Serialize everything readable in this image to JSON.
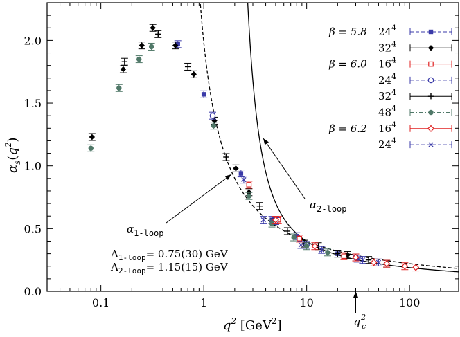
{
  "chart_data": {
    "type": "scatter",
    "title": "",
    "xlabel": "q^2 [GeV^2]",
    "ylabel": "α_s(q^2)",
    "x_scale": "log",
    "xlim": [
      0.03,
      300
    ],
    "ylim": [
      0.0,
      2.3
    ],
    "grid": false,
    "legend_position": "top-right",
    "x_ticks": [
      {
        "value": 0.1,
        "label": "0.1"
      },
      {
        "value": 1,
        "label": "1"
      },
      {
        "value": 10,
        "label": "10"
      },
      {
        "value": 100,
        "label": "100"
      }
    ],
    "y_ticks": [
      {
        "value": 0.0,
        "label": "0.0"
      },
      {
        "value": 0.5,
        "label": "0.5"
      },
      {
        "value": 1.0,
        "label": "1.0"
      },
      {
        "value": 1.5,
        "label": "1.5"
      },
      {
        "value": 2.0,
        "label": "2.0"
      }
    ],
    "series": [
      {
        "name": "24^4",
        "beta_label": "β = 5.8",
        "color": "#3a3aa8",
        "marker": "square-filled",
        "line": "dash",
        "points": [
          [
            0.56,
            1.97
          ],
          [
            1.0,
            1.57
          ],
          [
            2.3,
            0.94
          ],
          [
            4.6,
            0.57
          ],
          [
            8.0,
            0.44
          ],
          [
            20,
            0.3
          ],
          [
            31,
            0.26
          ]
        ]
      },
      {
        "name": "32^4",
        "beta_label": "",
        "color": "#000000",
        "marker": "diamond-filled",
        "line": "solid",
        "points": [
          [
            0.082,
            1.23
          ],
          [
            0.165,
            1.77
          ],
          [
            0.25,
            1.96
          ],
          [
            0.32,
            2.1
          ],
          [
            0.53,
            1.96
          ],
          [
            0.8,
            1.73
          ],
          [
            1.27,
            1.36
          ],
          [
            2.05,
            0.98
          ],
          [
            2.75,
            0.79
          ],
          [
            4.8,
            0.55
          ],
          [
            9.5,
            0.38
          ],
          [
            25,
            0.29
          ]
        ]
      },
      {
        "name": "16^4",
        "beta_label": "β = 6.0",
        "color": "#e02020",
        "marker": "square-open",
        "line": "solid",
        "points": [
          [
            2.75,
            0.85
          ],
          [
            5.3,
            0.57
          ],
          [
            8.5,
            0.42
          ],
          [
            23,
            0.28
          ]
        ]
      },
      {
        "name": "24^4",
        "beta_label": "",
        "color": "#3a3aa8",
        "marker": "circle-open",
        "line": "dash",
        "points": [
          [
            1.22,
            1.4
          ],
          [
            5.0,
            0.56
          ],
          [
            10,
            0.37
          ],
          [
            30,
            0.27
          ]
        ]
      },
      {
        "name": "32^4",
        "beta_label": "",
        "color": "#000000",
        "marker": "plus",
        "line": "solid",
        "points": [
          [
            0.17,
            1.83
          ],
          [
            0.36,
            2.05
          ],
          [
            0.7,
            1.79
          ],
          [
            1.65,
            1.07
          ],
          [
            3.5,
            0.68
          ],
          [
            6.5,
            0.48
          ],
          [
            13,
            0.36
          ],
          [
            20,
            0.3
          ],
          [
            40,
            0.25
          ],
          [
            60,
            0.22
          ]
        ]
      },
      {
        "name": "48^4",
        "beta_label": "",
        "color": "#507868",
        "marker": "circle-filled",
        "line": "dashdot",
        "points": [
          [
            0.08,
            1.14
          ],
          [
            0.15,
            1.62
          ],
          [
            0.235,
            1.85
          ],
          [
            0.31,
            1.95
          ],
          [
            1.25,
            1.32
          ],
          [
            2.75,
            0.76
          ],
          [
            4.6,
            0.54
          ],
          [
            7.5,
            0.43
          ],
          [
            10,
            0.36
          ],
          [
            16,
            0.31
          ]
        ]
      },
      {
        "name": "16^4",
        "beta_label": "β = 6.2",
        "color": "#e02020",
        "marker": "diamond-open",
        "line": "solid",
        "points": [
          [
            5.0,
            0.57
          ],
          [
            12,
            0.36
          ],
          [
            30,
            0.27
          ],
          [
            45,
            0.23
          ],
          [
            60,
            0.22
          ],
          [
            90,
            0.2
          ],
          [
            115,
            0.19
          ]
        ]
      },
      {
        "name": "24^4",
        "beta_label": "",
        "color": "#3a3aa8",
        "marker": "cross",
        "line": "dash",
        "points": [
          [
            2.45,
            0.89
          ],
          [
            3.8,
            0.57
          ],
          [
            8.8,
            0.37
          ],
          [
            14,
            0.33
          ],
          [
            35,
            0.25
          ],
          [
            50,
            0.23
          ]
        ]
      }
    ],
    "curves": [
      {
        "name": "α_1-loop",
        "style": "dashed",
        "Lambda": 0.75,
        "nf": 0
      },
      {
        "name": "α_2-loop",
        "style": "solid",
        "Lambda": 1.15,
        "nf": 0
      }
    ],
    "annotations": {
      "one_loop_label": "α_1-loop",
      "two_loop_label": "α_2-loop",
      "lambda_one": "Λ_1-loop = 0.75(30) GeV",
      "lambda_two": "Λ_2-loop = 1.15(15) GeV",
      "qc_label": "q_c^2",
      "qc_value": 30
    }
  }
}
